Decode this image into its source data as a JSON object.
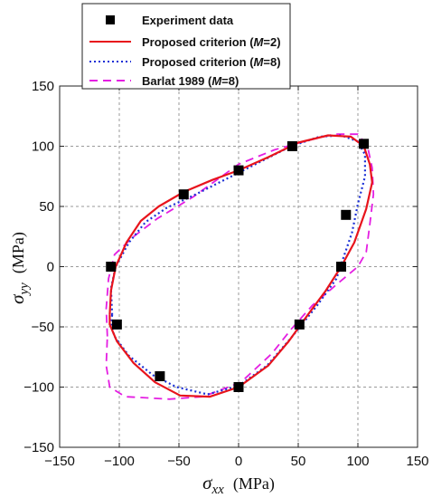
{
  "chart_data": {
    "type": "scatter",
    "xlabel": "σxx (MPa)",
    "ylabel": "σyy (MPa)",
    "xlabel_parts": {
      "symbol": "σ",
      "sub": "xx",
      "unit": "(MPa)"
    },
    "ylabel_parts": {
      "symbol": "σ",
      "sub": "yy",
      "unit": "(MPa)"
    },
    "xlim": [
      -150,
      150
    ],
    "ylim": [
      -150,
      150
    ],
    "xticks": [
      -150,
      -100,
      -50,
      0,
      50,
      100,
      150
    ],
    "yticks": [
      -150,
      -100,
      -50,
      0,
      50,
      100,
      150
    ],
    "xtick_labels": [
      "−150",
      "−100",
      "−50",
      "0",
      "50",
      "100",
      "150"
    ],
    "ytick_labels": [
      "−150",
      "−100",
      "−50",
      "0",
      "50",
      "100",
      "150"
    ],
    "grid": true,
    "legend_position": "top",
    "legend": [
      {
        "key": "exp",
        "text": "Experiment data"
      },
      {
        "key": "m2",
        "text": "Proposed criterion (M=2)",
        "prefix": "Proposed criterion (",
        "var": "M",
        "suffix": "=2)"
      },
      {
        "key": "m8",
        "text": "Proposed criterion (M=8)",
        "prefix": "Proposed criterion (",
        "var": "M",
        "suffix": "=8)"
      },
      {
        "key": "barlat",
        "text": "Barlat 1989 (M=8)",
        "prefix": "Barlat 1989 (",
        "var": "M",
        "suffix": "=8)"
      }
    ],
    "series": [
      {
        "name": "Experiment data",
        "style": "markers",
        "color": "#000000",
        "points": [
          [
            -107,
            0
          ],
          [
            -102,
            -48
          ],
          [
            -66,
            -91
          ],
          [
            0,
            -100
          ],
          [
            51,
            -48
          ],
          [
            86,
            0
          ],
          [
            90,
            43
          ],
          [
            105,
            102
          ],
          [
            45,
            100
          ],
          [
            0,
            80
          ],
          [
            -46,
            60
          ]
        ]
      },
      {
        "name": "Proposed criterion (M=2)",
        "style": "solid",
        "color": "#e8141c",
        "points": [
          [
            -108,
            -40
          ],
          [
            -107,
            -20
          ],
          [
            -103,
            0
          ],
          [
            -94,
            20
          ],
          [
            -82,
            38
          ],
          [
            -67,
            50
          ],
          [
            -46,
            62
          ],
          [
            -22,
            72
          ],
          [
            0,
            80
          ],
          [
            25,
            91
          ],
          [
            50,
            103
          ],
          [
            75,
            109
          ],
          [
            94,
            108
          ],
          [
            105,
            100
          ],
          [
            110,
            85
          ],
          [
            112,
            70
          ],
          [
            107,
            48
          ],
          [
            97,
            20
          ],
          [
            86,
            0
          ],
          [
            73,
            -20
          ],
          [
            58,
            -40
          ],
          [
            42,
            -62
          ],
          [
            25,
            -82
          ],
          [
            0,
            -100
          ],
          [
            -24,
            -108
          ],
          [
            -49,
            -107
          ],
          [
            -70,
            -96
          ],
          [
            -88,
            -80
          ],
          [
            -102,
            -62
          ],
          [
            -108,
            -48
          ],
          [
            -108,
            -40
          ]
        ]
      },
      {
        "name": "Proposed criterion (M=8)",
        "style": "dotted",
        "color": "#1a2fd6",
        "points": [
          [
            -106,
            -40
          ],
          [
            -107,
            -18
          ],
          [
            -103,
            0
          ],
          [
            -92,
            20
          ],
          [
            -78,
            37
          ],
          [
            -60,
            49
          ],
          [
            -38,
            59
          ],
          [
            -16,
            70
          ],
          [
            0,
            78
          ],
          [
            22,
            89
          ],
          [
            44,
            100
          ],
          [
            68,
            108
          ],
          [
            86,
            109
          ],
          [
            100,
            104
          ],
          [
            106,
            93
          ],
          [
            106,
            75
          ],
          [
            100,
            52
          ],
          [
            95,
            28
          ],
          [
            88,
            8
          ],
          [
            82,
            -10
          ],
          [
            66,
            -32
          ],
          [
            45,
            -58
          ],
          [
            24,
            -82
          ],
          [
            0,
            -99
          ],
          [
            -26,
            -106
          ],
          [
            -52,
            -100
          ],
          [
            -72,
            -90
          ],
          [
            -92,
            -74
          ],
          [
            -104,
            -58
          ],
          [
            -107,
            -48
          ],
          [
            -106,
            -40
          ]
        ]
      },
      {
        "name": "Barlat 1989 (M=8)",
        "style": "dashed",
        "color": "#e41ee2",
        "points": [
          [
            -110,
            -58
          ],
          [
            -111,
            -35
          ],
          [
            -109,
            -10
          ],
          [
            -104,
            10
          ],
          [
            -88,
            25
          ],
          [
            -68,
            40
          ],
          [
            -38,
            58
          ],
          [
            0,
            85
          ],
          [
            30,
            97
          ],
          [
            55,
            104
          ],
          [
            80,
            110
          ],
          [
            100,
            110
          ],
          [
            108,
            100
          ],
          [
            112,
            82
          ],
          [
            113,
            60
          ],
          [
            110,
            35
          ],
          [
            107,
            12
          ],
          [
            100,
            0
          ],
          [
            82,
            -15
          ],
          [
            62,
            -32
          ],
          [
            44,
            -52
          ],
          [
            28,
            -72
          ],
          [
            2,
            -96
          ],
          [
            -30,
            -108
          ],
          [
            -58,
            -110
          ],
          [
            -95,
            -108
          ],
          [
            -108,
            -100
          ],
          [
            -111,
            -82
          ],
          [
            -110,
            -58
          ]
        ]
      }
    ]
  }
}
